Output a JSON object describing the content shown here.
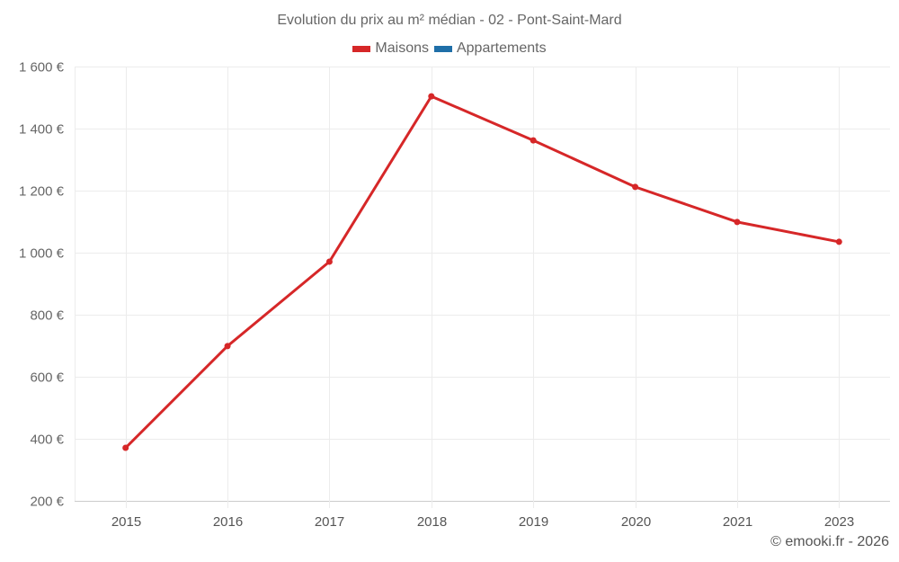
{
  "chart_data": {
    "type": "line",
    "title": "Evolution du prix au m² médian - 02 - Pont-Saint-Mard",
    "categories": [
      "2015",
      "2016",
      "2017",
      "2018",
      "2019",
      "2020",
      "2021",
      "2023"
    ],
    "series": [
      {
        "name": "Maisons",
        "color": "#d62728",
        "values": [
          371,
          699,
          971,
          1504,
          1362,
          1212,
          1099,
          1035
        ]
      },
      {
        "name": "Appartements",
        "color": "#1f6fa8",
        "values": []
      }
    ],
    "xlabel": "",
    "ylabel": "",
    "ylim": [
      200,
      1600
    ],
    "yticks": [
      200,
      400,
      600,
      800,
      1000,
      1200,
      1400,
      1600
    ],
    "ytick_labels": [
      "200 €",
      "400 €",
      "600 €",
      "800 €",
      "1 000 €",
      "1 200 €",
      "1 400 €",
      "1 600 €"
    ],
    "grid": true,
    "legend_position": "top"
  },
  "header": {
    "title": "Evolution du prix au m² médian - 02 - Pont-Saint-Mard"
  },
  "legend": {
    "items": [
      {
        "label": "Maisons",
        "color": "#d62728"
      },
      {
        "label": "Appartements",
        "color": "#1f6fa8"
      }
    ]
  },
  "footer": {
    "credit": "© emooki.fr - 2026"
  }
}
